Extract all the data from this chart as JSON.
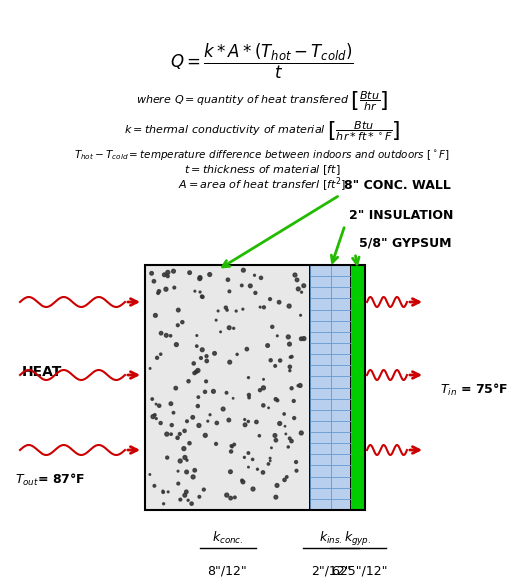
{
  "bg_color": "#ffffff",
  "arrow_color": "#cc0000",
  "green_color": "#22bb00",
  "conc_color": "#e8e8e8",
  "ins_color": "#b8d0ee",
  "gyp_color": "#00cc00",
  "ins_grid_color": "#6699cc",
  "dot_color": "#333333",
  "conc_thick": "8\"/12\"",
  "ins_thick": "2\"/12\"",
  "gyp_thick": ".625\"/12\""
}
